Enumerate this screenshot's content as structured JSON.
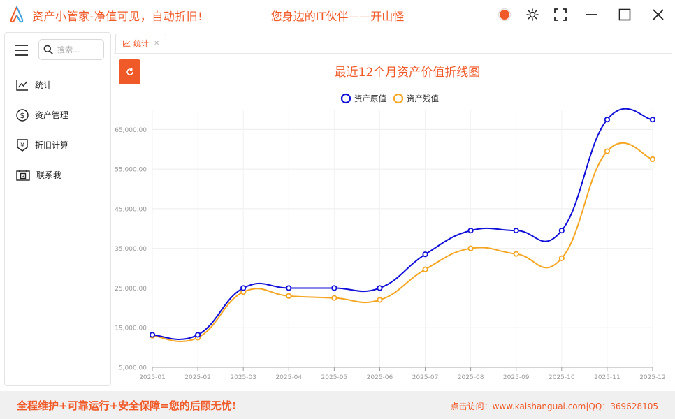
{
  "app": {
    "title": "资产小管家-净值可见，自动折旧!",
    "slogan": "您身边的IT伙伴——开山怪",
    "accent": "#f05a28"
  },
  "window_controls": [
    "theme-color",
    "brightness",
    "fullscreen",
    "minimize",
    "maximize",
    "close"
  ],
  "sidebar": {
    "search_placeholder": "搜索...",
    "items": [
      {
        "label": "统计",
        "icon": "line-chart-icon"
      },
      {
        "label": "资产管理",
        "icon": "dollar-circle-icon"
      },
      {
        "label": "折旧计算",
        "icon": "yen-shield-icon"
      },
      {
        "label": "联系我",
        "icon": "contact-card-icon"
      }
    ]
  },
  "tabs": [
    {
      "label": "统计",
      "icon": "line-chart-icon",
      "closable": true
    }
  ],
  "chart_data": {
    "type": "line",
    "title": "最近12个月资产价值折线图",
    "categories": [
      "2025-01",
      "2025-02",
      "2025-03",
      "2025-04",
      "2025-05",
      "2025-06",
      "2025-07",
      "2025-08",
      "2025-09",
      "2025-10",
      "2025-11",
      "2025-12"
    ],
    "series": [
      {
        "name": "资产原值",
        "color": "#1010d8",
        "values": [
          13200,
          13200,
          25000,
          25000,
          25000,
          25000,
          33500,
          39500,
          39500,
          39500,
          67500,
          67500
        ]
      },
      {
        "name": "资产残值",
        "color": "#f5a623",
        "values": [
          13000,
          12500,
          24000,
          23000,
          22500,
          22000,
          29700,
          35000,
          33600,
          32500,
          59500,
          57500
        ]
      }
    ],
    "y_ticks": [
      "5,000.00",
      "15,000.00",
      "25,000.00",
      "35,000.00",
      "45,000.00",
      "55,000.00",
      "65,000.00"
    ],
    "ylim": [
      5000,
      70000
    ],
    "legend": "top-center",
    "grid": true
  },
  "footer": {
    "left": "全程维护+可靠运行+安全保障=您的后顾无忧!",
    "visit_label": "点击访问：",
    "site": "www.kaishanguai.com",
    "qq": "|QQ：369628105"
  }
}
